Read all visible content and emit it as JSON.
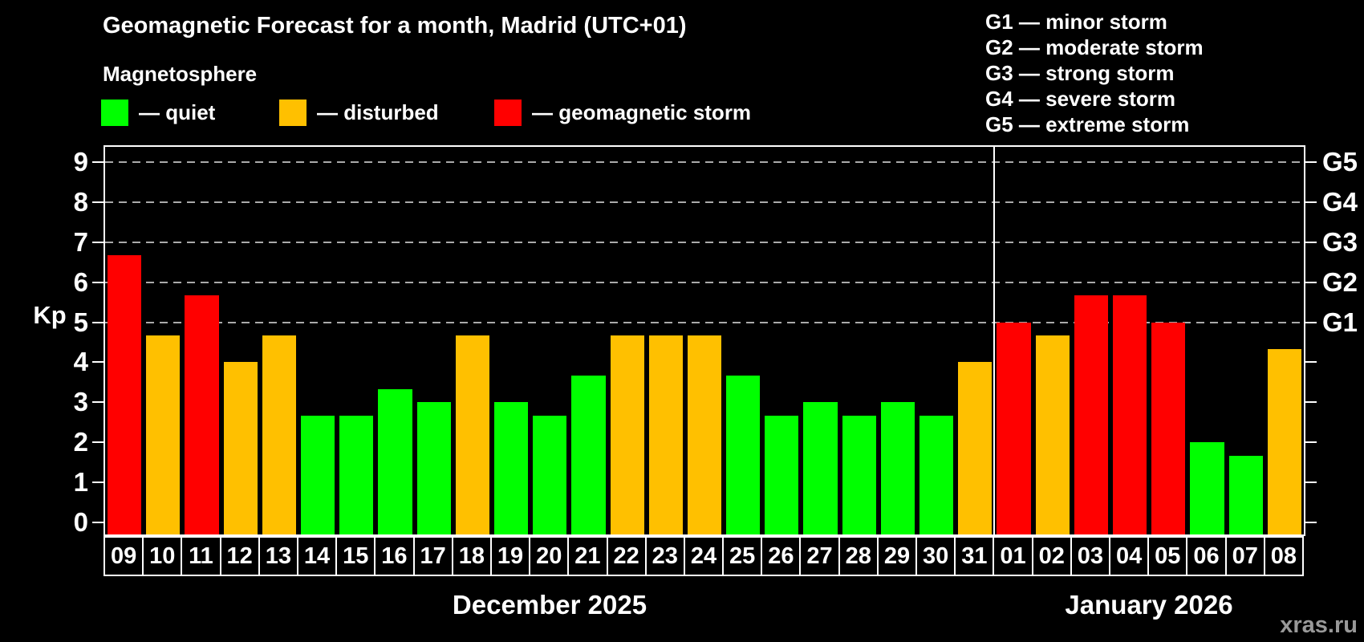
{
  "header": {
    "title": "Geomagnetic Forecast for a month, Madrid (UTC+01)",
    "subtitle": "Magnetosphere"
  },
  "legend": {
    "items": [
      {
        "name": "quiet",
        "label": "— quiet",
        "color": "#00ff00"
      },
      {
        "name": "disturbed",
        "label": "— disturbed",
        "color": "#ffc000"
      },
      {
        "name": "storm",
        "label": "— geomagnetic storm",
        "color": "#ff0000"
      }
    ]
  },
  "g_legend": [
    "G1 — minor storm",
    "G2 — moderate storm",
    "G3 — strong storm",
    "G4 — severe storm",
    "G5 — extreme storm"
  ],
  "axis": {
    "kp_label": "Kp",
    "kp_ticks": [
      "0",
      "1",
      "2",
      "3",
      "4",
      "5",
      "6",
      "7",
      "8",
      "9"
    ],
    "g_ticks": [
      {
        "label": "G1",
        "kp": 5
      },
      {
        "label": "G2",
        "kp": 6
      },
      {
        "label": "G3",
        "kp": 7
      },
      {
        "label": "G4",
        "kp": 8
      },
      {
        "label": "G5",
        "kp": 9
      }
    ]
  },
  "months": [
    {
      "label": "December 2025"
    },
    {
      "label": "January 2026"
    }
  ],
  "watermark": "xras.ru",
  "colors": {
    "quiet": "#00ff00",
    "disturbed": "#ffc000",
    "storm": "#ff0000",
    "grid": "#aaaaaa",
    "axis": "#ffffff"
  },
  "chart_data": {
    "type": "bar",
    "title": "Geomagnetic Forecast for a month, Madrid (UTC+01)",
    "ylabel": "Kp",
    "ylim": [
      0,
      9
    ],
    "grid": "dashed horizontal at Kp 5-9 (G1-G5)",
    "legend_position": "top-left and top-right",
    "gridlines_at_kp": [
      5,
      6,
      7,
      8,
      9
    ],
    "categories": [
      "09",
      "10",
      "11",
      "12",
      "13",
      "14",
      "15",
      "16",
      "17",
      "18",
      "19",
      "20",
      "21",
      "22",
      "23",
      "24",
      "25",
      "26",
      "27",
      "28",
      "29",
      "30",
      "31",
      "01",
      "02",
      "03",
      "04",
      "05",
      "06",
      "07",
      "08"
    ],
    "values": [
      6.67,
      4.67,
      5.67,
      4.0,
      4.67,
      2.67,
      2.67,
      3.33,
      3.0,
      4.67,
      3.0,
      2.67,
      3.67,
      4.67,
      4.67,
      4.67,
      3.67,
      2.67,
      3.0,
      2.67,
      3.0,
      2.67,
      4.0,
      5.0,
      4.67,
      5.67,
      5.67,
      5.0,
      2.0,
      1.67,
      4.33
    ],
    "statuses": [
      "storm",
      "disturbed",
      "storm",
      "disturbed",
      "disturbed",
      "quiet",
      "quiet",
      "quiet",
      "quiet",
      "disturbed",
      "quiet",
      "quiet",
      "quiet",
      "disturbed",
      "disturbed",
      "disturbed",
      "quiet",
      "quiet",
      "quiet",
      "quiet",
      "quiet",
      "quiet",
      "disturbed",
      "storm",
      "disturbed",
      "storm",
      "storm",
      "storm",
      "quiet",
      "quiet",
      "disturbed"
    ],
    "month_split_index": 23
  }
}
